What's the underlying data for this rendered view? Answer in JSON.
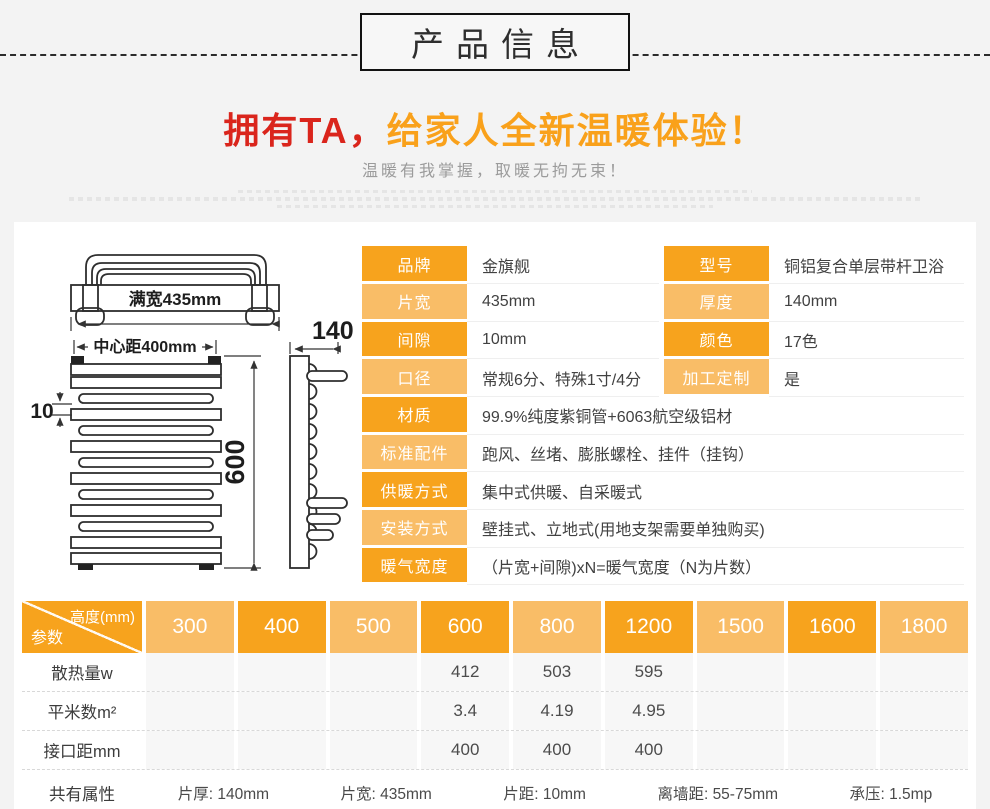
{
  "banner": {
    "title": "产品信息"
  },
  "headline": {
    "red": "拥有TA，",
    "orange": "给家人全新温暖体验！"
  },
  "subtitle": "温暖有我掌握，取暖无拘无束！",
  "drawing": {
    "full_width": "满宽435mm",
    "center_distance": "中心距400mm",
    "gap": "10",
    "height": "600",
    "depth": "140"
  },
  "specs": {
    "rows": [
      {
        "shade": "dark",
        "cells": [
          {
            "label": "品牌",
            "value": "金旗舰"
          },
          {
            "label": "型号",
            "value": "铜铝复合单层带杆卫浴"
          }
        ]
      },
      {
        "shade": "light",
        "cells": [
          {
            "label": "片宽",
            "value": "435mm"
          },
          {
            "label": "厚度",
            "value": "140mm"
          }
        ]
      },
      {
        "shade": "dark",
        "cells": [
          {
            "label": "间隙",
            "value": "10mm"
          },
          {
            "label": "颜色",
            "value": "17色"
          }
        ]
      },
      {
        "shade": "light",
        "cells": [
          {
            "label": "口径",
            "value": "常规6分、特殊1寸/4分"
          },
          {
            "label": "加工定制",
            "value": "是"
          }
        ]
      },
      {
        "shade": "dark",
        "cells": [
          {
            "label": "材质",
            "value": "99.9%纯度紫铜管+6063航空级铝材"
          }
        ]
      },
      {
        "shade": "light",
        "cells": [
          {
            "label": "标准配件",
            "value": "跑风、丝堵、膨胀螺栓、挂件（挂钩）"
          }
        ]
      },
      {
        "shade": "dark",
        "cells": [
          {
            "label": "供暖方式",
            "value": "集中式供暖、自采暖式"
          }
        ]
      },
      {
        "shade": "light",
        "cells": [
          {
            "label": "安装方式",
            "value": "壁挂式、立地式(用地支架需要单独购买)"
          }
        ]
      },
      {
        "shade": "dark",
        "cells": [
          {
            "label": "暖气宽度",
            "value": "（片宽+间隙)xN=暖气宽度（N为片数）"
          }
        ]
      }
    ]
  },
  "size_table": {
    "corner_top": "高度(mm)",
    "corner_bottom": "参数",
    "columns": [
      "300",
      "400",
      "500",
      "600",
      "800",
      "1200",
      "1500",
      "1600",
      "1800"
    ],
    "rows": [
      {
        "label": "散热量w",
        "values": [
          "",
          "",
          "",
          "412",
          "503",
          "595",
          "",
          "",
          ""
        ]
      },
      {
        "label": "平米数m²",
        "values": [
          "",
          "",
          "",
          "3.4",
          "4.19",
          "4.95",
          "",
          "",
          ""
        ]
      },
      {
        "label": "接口距mm",
        "values": [
          "",
          "",
          "",
          "400",
          "400",
          "400",
          "",
          "",
          ""
        ]
      }
    ],
    "common_label": "共有属性",
    "common_items": [
      "片厚: 140mm",
      "片宽: 435mm",
      "片距: 10mm",
      "离墙距: 55-75mm",
      "承压: 1.5mp"
    ]
  },
  "colors": {
    "accent_dark": "#f7a31d",
    "accent_light": "#f9bd67",
    "headline_red": "#da251c",
    "headline_orange": "#f9a11b"
  }
}
